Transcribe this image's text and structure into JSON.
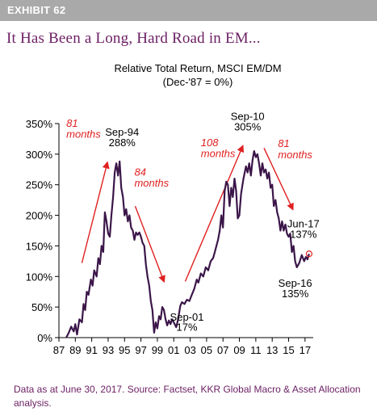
{
  "header": {
    "exhibit": "EXHIBIT 62",
    "headline": "It Has Been a Long, Hard Road in EM..."
  },
  "footnote": "Data as at June 30, 2017. Source: Factset, KKR Global Macro & Asset Allocation analysis.",
  "colors": {
    "series": "#3b1649",
    "arrows": "#e02020",
    "headline": "#6b1e63",
    "exhibit_bar": "#a9a9a9"
  },
  "chart_data": {
    "type": "line",
    "title": "Relative Total Return, MSCI EM/DM",
    "subtitle": "(Dec-'87 = 0%)",
    "x_tick_labels": [
      "87",
      "89",
      "91",
      "93",
      "95",
      "97",
      "99",
      "01",
      "03",
      "05",
      "07",
      "09",
      "11",
      "13",
      "15",
      "17"
    ],
    "x_tick_years": [
      1987,
      1989,
      1991,
      1993,
      1995,
      1997,
      1999,
      2001,
      2003,
      2005,
      2007,
      2009,
      2011,
      2013,
      2015,
      2017
    ],
    "xlim": [
      1987.0,
      2018.0
    ],
    "y_tick_labels": [
      "0%",
      "50%",
      "100%",
      "150%",
      "200%",
      "250%",
      "300%",
      "350%"
    ],
    "y_tick_values": [
      0,
      50,
      100,
      150,
      200,
      250,
      300,
      350
    ],
    "ylim": [
      0,
      350
    ],
    "grid": false,
    "series": [
      {
        "points": [
          [
            1987.9,
            0
          ],
          [
            1988.2,
            8
          ],
          [
            1988.5,
            18
          ],
          [
            1988.8,
            10
          ],
          [
            1989.0,
            22
          ],
          [
            1989.2,
            5
          ],
          [
            1989.5,
            30
          ],
          [
            1989.8,
            25
          ],
          [
            1990.0,
            55
          ],
          [
            1990.2,
            45
          ],
          [
            1990.4,
            75
          ],
          [
            1990.6,
            70
          ],
          [
            1990.9,
            95
          ],
          [
            1991.1,
            85
          ],
          [
            1991.3,
            110
          ],
          [
            1991.6,
            100
          ],
          [
            1991.8,
            130
          ],
          [
            1992.0,
            120
          ],
          [
            1992.2,
            150
          ],
          [
            1992.4,
            140
          ],
          [
            1992.6,
            205
          ],
          [
            1992.8,
            190
          ],
          [
            1993.0,
            170
          ],
          [
            1993.2,
            165
          ],
          [
            1993.4,
            200
          ],
          [
            1993.6,
            230
          ],
          [
            1993.8,
            270
          ],
          [
            1994.0,
            285
          ],
          [
            1994.2,
            265
          ],
          [
            1994.4,
            288
          ],
          [
            1994.6,
            245
          ],
          [
            1994.8,
            230
          ],
          [
            1995.0,
            200
          ],
          [
            1995.2,
            210
          ],
          [
            1995.4,
            190
          ],
          [
            1995.6,
            200
          ],
          [
            1995.8,
            180
          ],
          [
            1996.0,
            175
          ],
          [
            1996.2,
            160
          ],
          [
            1996.4,
            172
          ],
          [
            1996.6,
            168
          ],
          [
            1996.8,
            172
          ],
          [
            1997.0,
            165
          ],
          [
            1997.2,
            155
          ],
          [
            1997.4,
            150
          ],
          [
            1997.6,
            120
          ],
          [
            1997.8,
            100
          ],
          [
            1998.0,
            85
          ],
          [
            1998.2,
            60
          ],
          [
            1998.4,
            45
          ],
          [
            1998.6,
            8
          ],
          [
            1998.8,
            25
          ],
          [
            1999.0,
            15
          ],
          [
            1999.2,
            35
          ],
          [
            1999.4,
            30
          ],
          [
            1999.6,
            50
          ],
          [
            1999.8,
            45
          ],
          [
            2000.0,
            30
          ],
          [
            2000.2,
            20
          ],
          [
            2000.4,
            28
          ],
          [
            2000.6,
            22
          ],
          [
            2000.8,
            30
          ],
          [
            2001.0,
            25
          ],
          [
            2001.3,
            17
          ],
          [
            2001.5,
            28
          ],
          [
            2001.8,
            52
          ],
          [
            2002.0,
            58
          ],
          [
            2002.3,
            55
          ],
          [
            2002.6,
            62
          ],
          [
            2002.9,
            60
          ],
          [
            2003.2,
            70
          ],
          [
            2003.5,
            80
          ],
          [
            2003.8,
            95
          ],
          [
            2004.0,
            90
          ],
          [
            2004.3,
            105
          ],
          [
            2004.6,
            100
          ],
          [
            2004.9,
            115
          ],
          [
            2005.2,
            110
          ],
          [
            2005.5,
            125
          ],
          [
            2005.8,
            130
          ],
          [
            2006.0,
            140
          ],
          [
            2006.2,
            150
          ],
          [
            2006.4,
            160
          ],
          [
            2006.6,
            175
          ],
          [
            2006.8,
            200
          ],
          [
            2007.0,
            180
          ],
          [
            2007.2,
            240
          ],
          [
            2007.4,
            255
          ],
          [
            2007.6,
            250
          ],
          [
            2007.8,
            215
          ],
          [
            2008.0,
            245
          ],
          [
            2008.2,
            230
          ],
          [
            2008.4,
            260
          ],
          [
            2008.6,
            240
          ],
          [
            2008.8,
            195
          ],
          [
            2009.0,
            200
          ],
          [
            2009.2,
            235
          ],
          [
            2009.5,
            260
          ],
          [
            2009.8,
            280
          ],
          [
            2010.0,
            270
          ],
          [
            2010.2,
            285
          ],
          [
            2010.4,
            265
          ],
          [
            2010.6,
            290
          ],
          [
            2010.8,
            305
          ],
          [
            2011.0,
            295
          ],
          [
            2011.2,
            300
          ],
          [
            2011.4,
            285
          ],
          [
            2011.6,
            265
          ],
          [
            2011.8,
            285
          ],
          [
            2012.0,
            270
          ],
          [
            2012.2,
            275
          ],
          [
            2012.4,
            260
          ],
          [
            2012.6,
            270
          ],
          [
            2012.8,
            245
          ],
          [
            2013.0,
            250
          ],
          [
            2013.2,
            215
          ],
          [
            2013.4,
            225
          ],
          [
            2013.6,
            205
          ],
          [
            2013.8,
            195
          ],
          [
            2014.0,
            175
          ],
          [
            2014.2,
            190
          ],
          [
            2014.4,
            175
          ],
          [
            2014.6,
            185
          ],
          [
            2014.8,
            170
          ],
          [
            2015.0,
            165
          ],
          [
            2015.2,
            170
          ],
          [
            2015.4,
            140
          ],
          [
            2015.6,
            150
          ],
          [
            2015.8,
            125
          ],
          [
            2016.0,
            115
          ],
          [
            2016.3,
            122
          ],
          [
            2016.6,
            135
          ],
          [
            2016.9,
            125
          ],
          [
            2017.1,
            132
          ],
          [
            2017.3,
            128
          ],
          [
            2017.5,
            137
          ]
        ]
      }
    ],
    "labels": [
      {
        "text": "Sep-94",
        "x": 1994.7,
        "y": 330
      },
      {
        "text": "288%",
        "x": 1994.7,
        "y": 313
      },
      {
        "text": "Sep-10",
        "x": 2010.0,
        "y": 356
      },
      {
        "text": "305%",
        "x": 2010.0,
        "y": 339
      },
      {
        "text": "Sep-01",
        "x": 2002.6,
        "y": 28
      },
      {
        "text": "17%",
        "x": 2002.6,
        "y": 11
      },
      {
        "text": "Sep-16",
        "x": 2015.8,
        "y": 83
      },
      {
        "text": "135%",
        "x": 2015.8,
        "y": 66
      },
      {
        "text": "Jun-17",
        "x": 2016.8,
        "y": 180
      },
      {
        "text": "137%",
        "x": 2016.8,
        "y": 163
      }
    ],
    "annotations": [
      {
        "text": "81",
        "x": 1987.9,
        "y": 345
      },
      {
        "text": "months",
        "x": 1987.9,
        "y": 327
      },
      {
        "text": "84",
        "x": 1996.2,
        "y": 265
      },
      {
        "text": "months",
        "x": 1996.2,
        "y": 247
      },
      {
        "text": "108",
        "x": 2004.3,
        "y": 313
      },
      {
        "text": "months",
        "x": 2004.3,
        "y": 295
      },
      {
        "text": "81",
        "x": 2013.7,
        "y": 312
      },
      {
        "text": "months",
        "x": 2013.7,
        "y": 293
      }
    ],
    "arrows": [
      {
        "from": [
          1989.8,
          122
        ],
        "to": [
          1992.9,
          286
        ]
      },
      {
        "from": [
          1996.3,
          215
        ],
        "to": [
          1999.8,
          92
        ]
      },
      {
        "from": [
          2002.4,
          92
        ],
        "to": [
          2009.4,
          313
        ]
      },
      {
        "from": [
          2012.0,
          310
        ],
        "to": [
          2015.5,
          210
        ]
      }
    ],
    "end_marker": {
      "x": 2017.5,
      "y": 137
    }
  }
}
